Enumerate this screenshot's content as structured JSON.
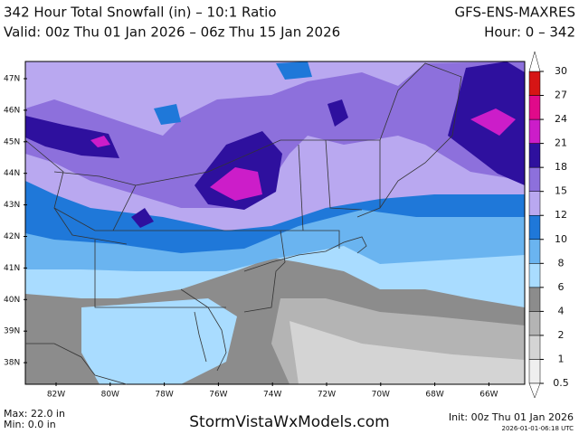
{
  "header": {
    "title": "342 Hour Total Snowfall (in) – 10:1 Ratio",
    "model": "GFS-ENS-MAXRES",
    "valid": "Valid: 00z Thu 01 Jan 2026 – 06z Thu 15 Jan 2026",
    "hours": "Hour: 0 – 342"
  },
  "map": {
    "lat_labels": [
      "47N",
      "46N",
      "45N",
      "44N",
      "43N",
      "42N",
      "41N",
      "40N",
      "39N",
      "38N"
    ],
    "lon_labels": [
      "82W",
      "80W",
      "78W",
      "76W",
      "74W",
      "72W",
      "70W",
      "68W",
      "66W"
    ]
  },
  "colorbar": {
    "ticks": [
      0.5,
      1,
      2,
      4,
      6,
      8,
      10,
      12,
      15,
      18,
      21,
      24,
      27,
      30
    ],
    "colors": [
      "#efefef",
      "#d4d4d4",
      "#b4b4b4",
      "#8c8c8c",
      "#a9dcff",
      "#6ab4f0",
      "#1f78d9",
      "#b9a8f0",
      "#8d70dc",
      "#2e109e",
      "#cc1dc9",
      "#e00a8a",
      "#d61515"
    ]
  },
  "footer": {
    "max": "Max: 22.0 in",
    "min": "Min: 0.0 in",
    "site": "StormVistaWxModels.com",
    "init": "Init: 00z Thu 01 Jan 2026",
    "stamp": "2026-01-01-06:18 UTC"
  }
}
